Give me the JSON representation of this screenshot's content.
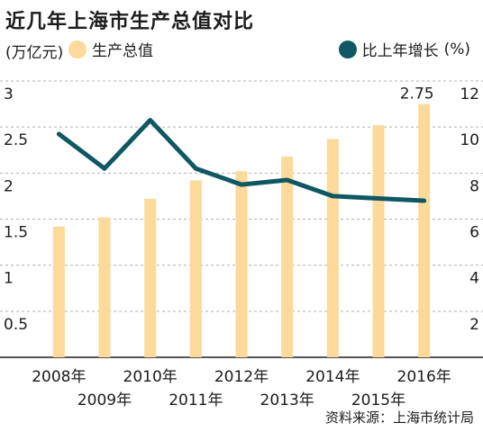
{
  "title": "近几年上海市生产总值对比",
  "colors": {
    "bar": "#fdd99a",
    "line": "#0f5863",
    "grid": "#b0b0b0",
    "text": "#1c1c1c"
  },
  "source": "资料来源：上海市统计局",
  "chart_data": {
    "type": "bar+line",
    "categories": [
      "2008年",
      "2009年",
      "2010年",
      "2011年",
      "2012年",
      "2013年",
      "2014年",
      "2015年",
      "2016年"
    ],
    "series": [
      {
        "name": "生产总值",
        "type": "bar",
        "axis": "left",
        "unit_label": "(万亿元)",
        "values": [
          1.42,
          1.52,
          1.72,
          1.92,
          2.02,
          2.18,
          2.37,
          2.52,
          2.75
        ]
      },
      {
        "name": "比上年增长",
        "type": "line",
        "axis": "right",
        "unit_label": "(%)",
        "values": [
          9.7,
          8.2,
          10.3,
          8.2,
          7.5,
          7.7,
          7.0,
          6.9,
          6.8
        ]
      }
    ],
    "left_axis": {
      "ylim": [
        0,
        3
      ],
      "ticks": [
        0.5,
        1,
        1.5,
        2,
        2.5,
        3
      ],
      "tick_labels": [
        "0.5",
        "1",
        "1.5",
        "2",
        "2.5",
        "3"
      ]
    },
    "right_axis": {
      "ylim": [
        0,
        12
      ],
      "ticks": [
        2,
        4,
        6,
        8,
        10,
        12
      ],
      "tick_labels": [
        "2",
        "4",
        "6",
        "8",
        "10",
        "12"
      ]
    },
    "annotations": [
      {
        "series": 0,
        "index": 8,
        "text": "2.75"
      }
    ],
    "grid": true,
    "legend": "top"
  }
}
